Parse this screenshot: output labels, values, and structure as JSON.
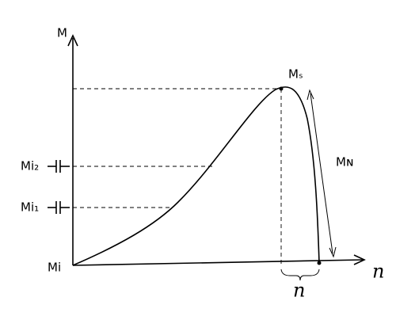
{
  "labels": {
    "y_axis": "M",
    "origin": "Mi",
    "mi2": "Mi₂",
    "mi1": "Mi₁",
    "ms": "Mₛ",
    "mn": "Mɴ",
    "x_axis": "n",
    "brace": "n"
  }
}
